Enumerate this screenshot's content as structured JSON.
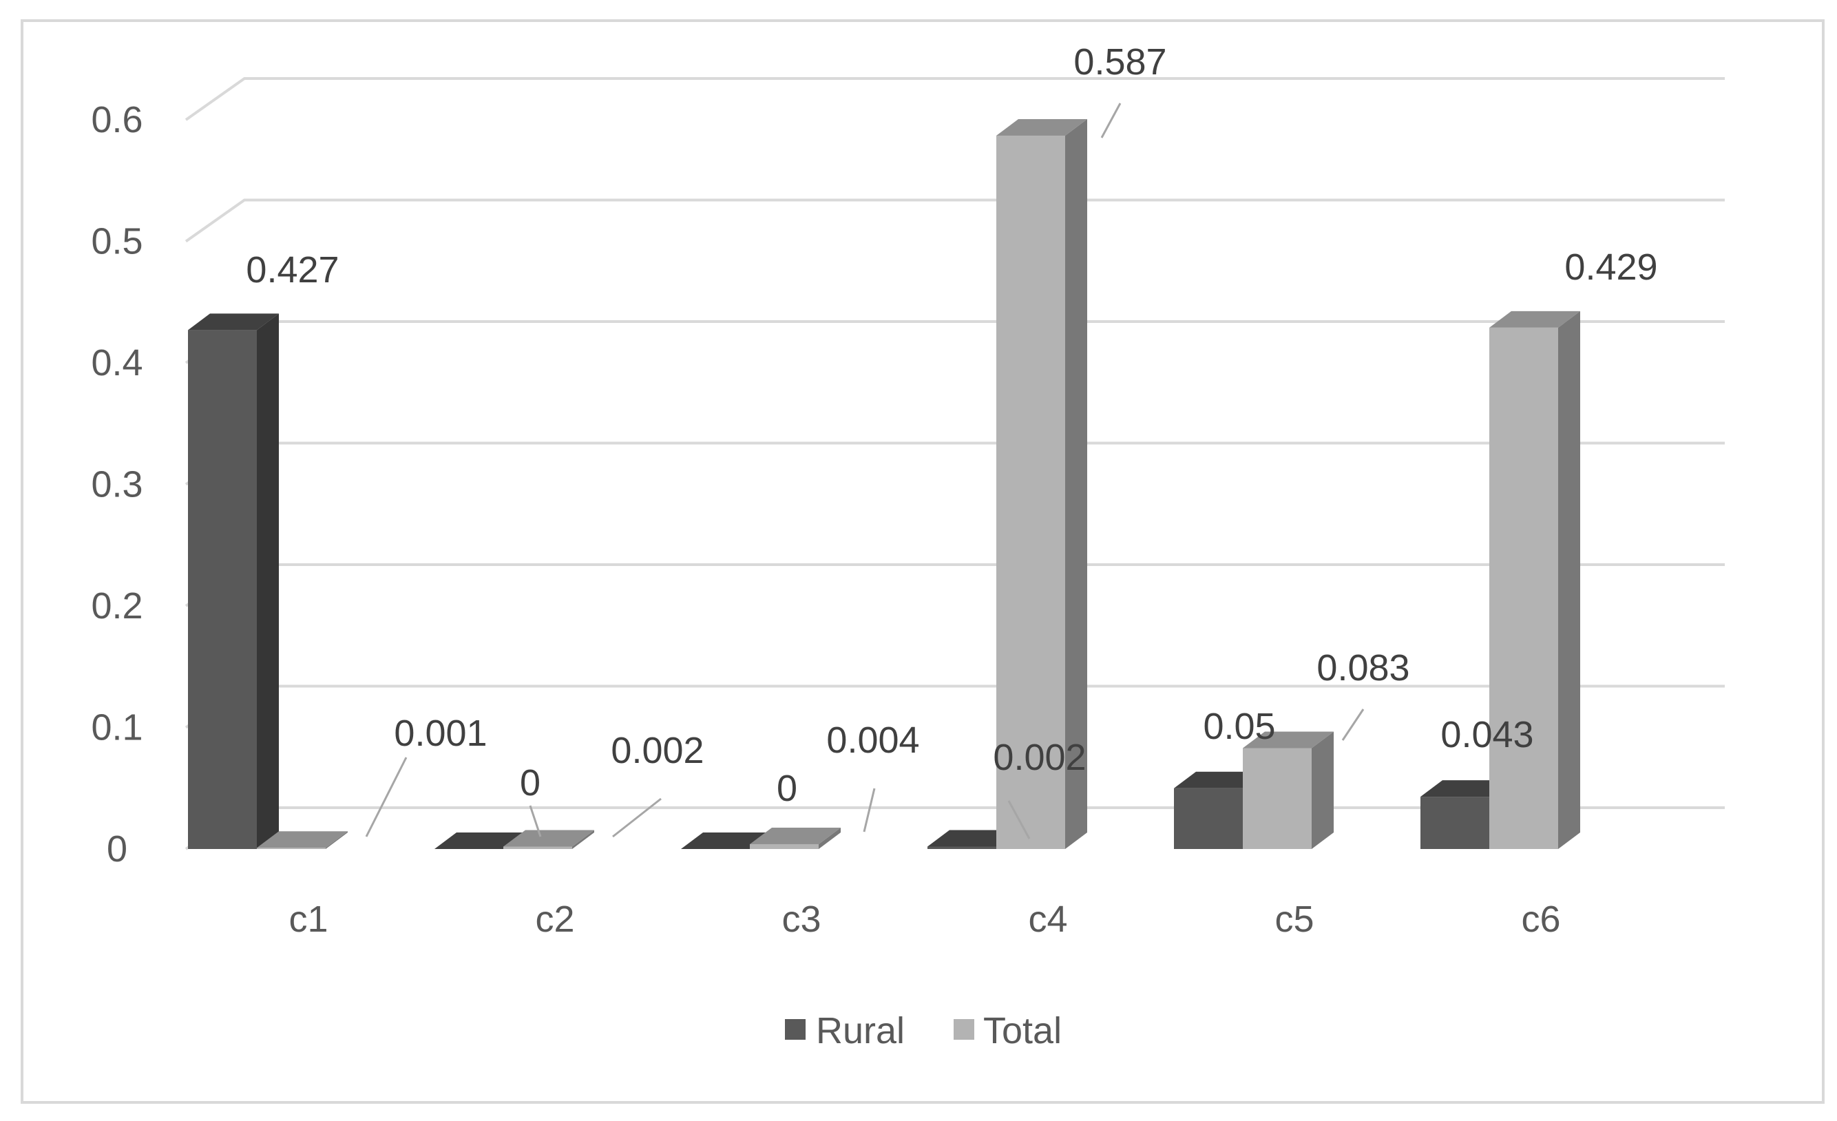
{
  "chart_data": {
    "type": "bar",
    "title": "",
    "xlabel": "",
    "ylabel": "",
    "categories": [
      "c1",
      "c2",
      "c3",
      "c4",
      "c5",
      "c6"
    ],
    "series": [
      {
        "name": "Rural",
        "values": [
          0.427,
          0,
          0,
          0.002,
          0.05,
          0.043
        ],
        "labels": [
          "0.427",
          "",
          "0",
          "0.002",
          "0.05",
          "0.043"
        ],
        "color": "#595959"
      },
      {
        "name": "Total",
        "values": [
          0.001,
          0.002,
          0.004,
          0.587,
          0.083,
          0.429
        ],
        "labels": [
          "0.001",
          "0.002",
          "0.004",
          "0.587",
          "0.083",
          "0.429"
        ],
        "color": "#b3b3b3"
      }
    ],
    "y_ticks": [
      "0",
      "0.1",
      "0.2",
      "0.3",
      "0.4",
      "0.5",
      "0.6"
    ],
    "ylim": [
      0,
      0.6
    ],
    "grid": true,
    "legend": "bottom",
    "style": "3d-column"
  },
  "extra_labels": {
    "c2_rural_zero": "0"
  }
}
